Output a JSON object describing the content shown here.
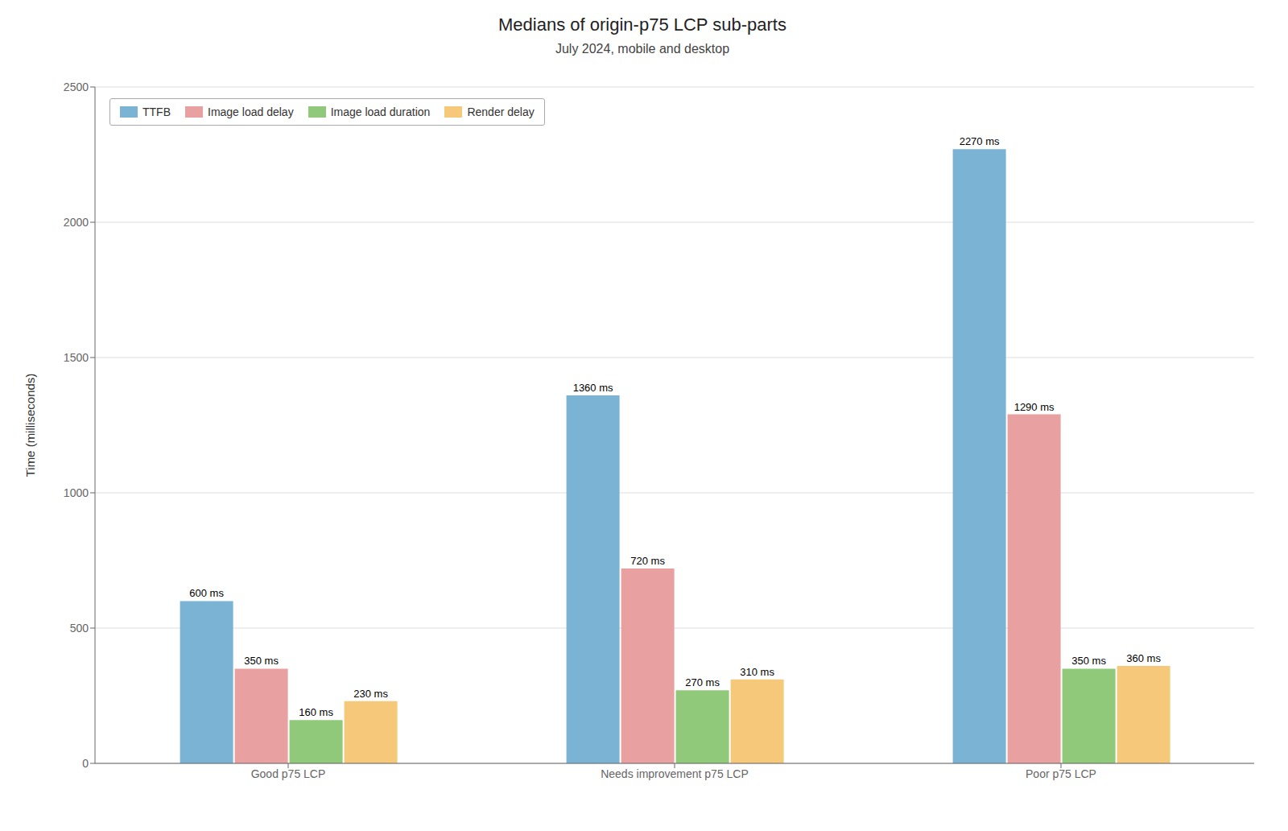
{
  "chart_data": {
    "type": "bar",
    "title": "Medians of origin-p75 LCP sub-parts",
    "subtitle": "July 2024, mobile and desktop",
    "categories": [
      "Good p75 LCP",
      "Needs improvement p75 LCP",
      "Poor p75 LCP"
    ],
    "series": [
      {
        "name": "TTFB",
        "color": "#7ab3d4",
        "values": [
          600,
          1360,
          2270
        ],
        "value_labels": [
          "600 ms",
          "1360 ms",
          "2270 ms"
        ]
      },
      {
        "name": "Image load delay",
        "color": "#e8a0a0",
        "values": [
          350,
          720,
          1290
        ],
        "value_labels": [
          "350 ms",
          "720 ms",
          "1290 ms"
        ]
      },
      {
        "name": "Image load duration",
        "color": "#90c97a",
        "values": [
          160,
          270,
          350
        ],
        "value_labels": [
          "160 ms",
          "270 ms",
          "350 ms"
        ]
      },
      {
        "name": "Render delay",
        "color": "#f5c87a",
        "values": [
          230,
          310,
          360
        ],
        "value_labels": [
          "230 ms",
          "310 ms",
          "360 ms"
        ]
      }
    ],
    "ylabel": "Time (milliseconds)",
    "ylim": [
      0,
      2500
    ],
    "yticks": [
      0,
      500,
      1000,
      1500,
      2000,
      2500
    ],
    "grid": true,
    "legend": "upper left",
    "data_labels": true
  }
}
